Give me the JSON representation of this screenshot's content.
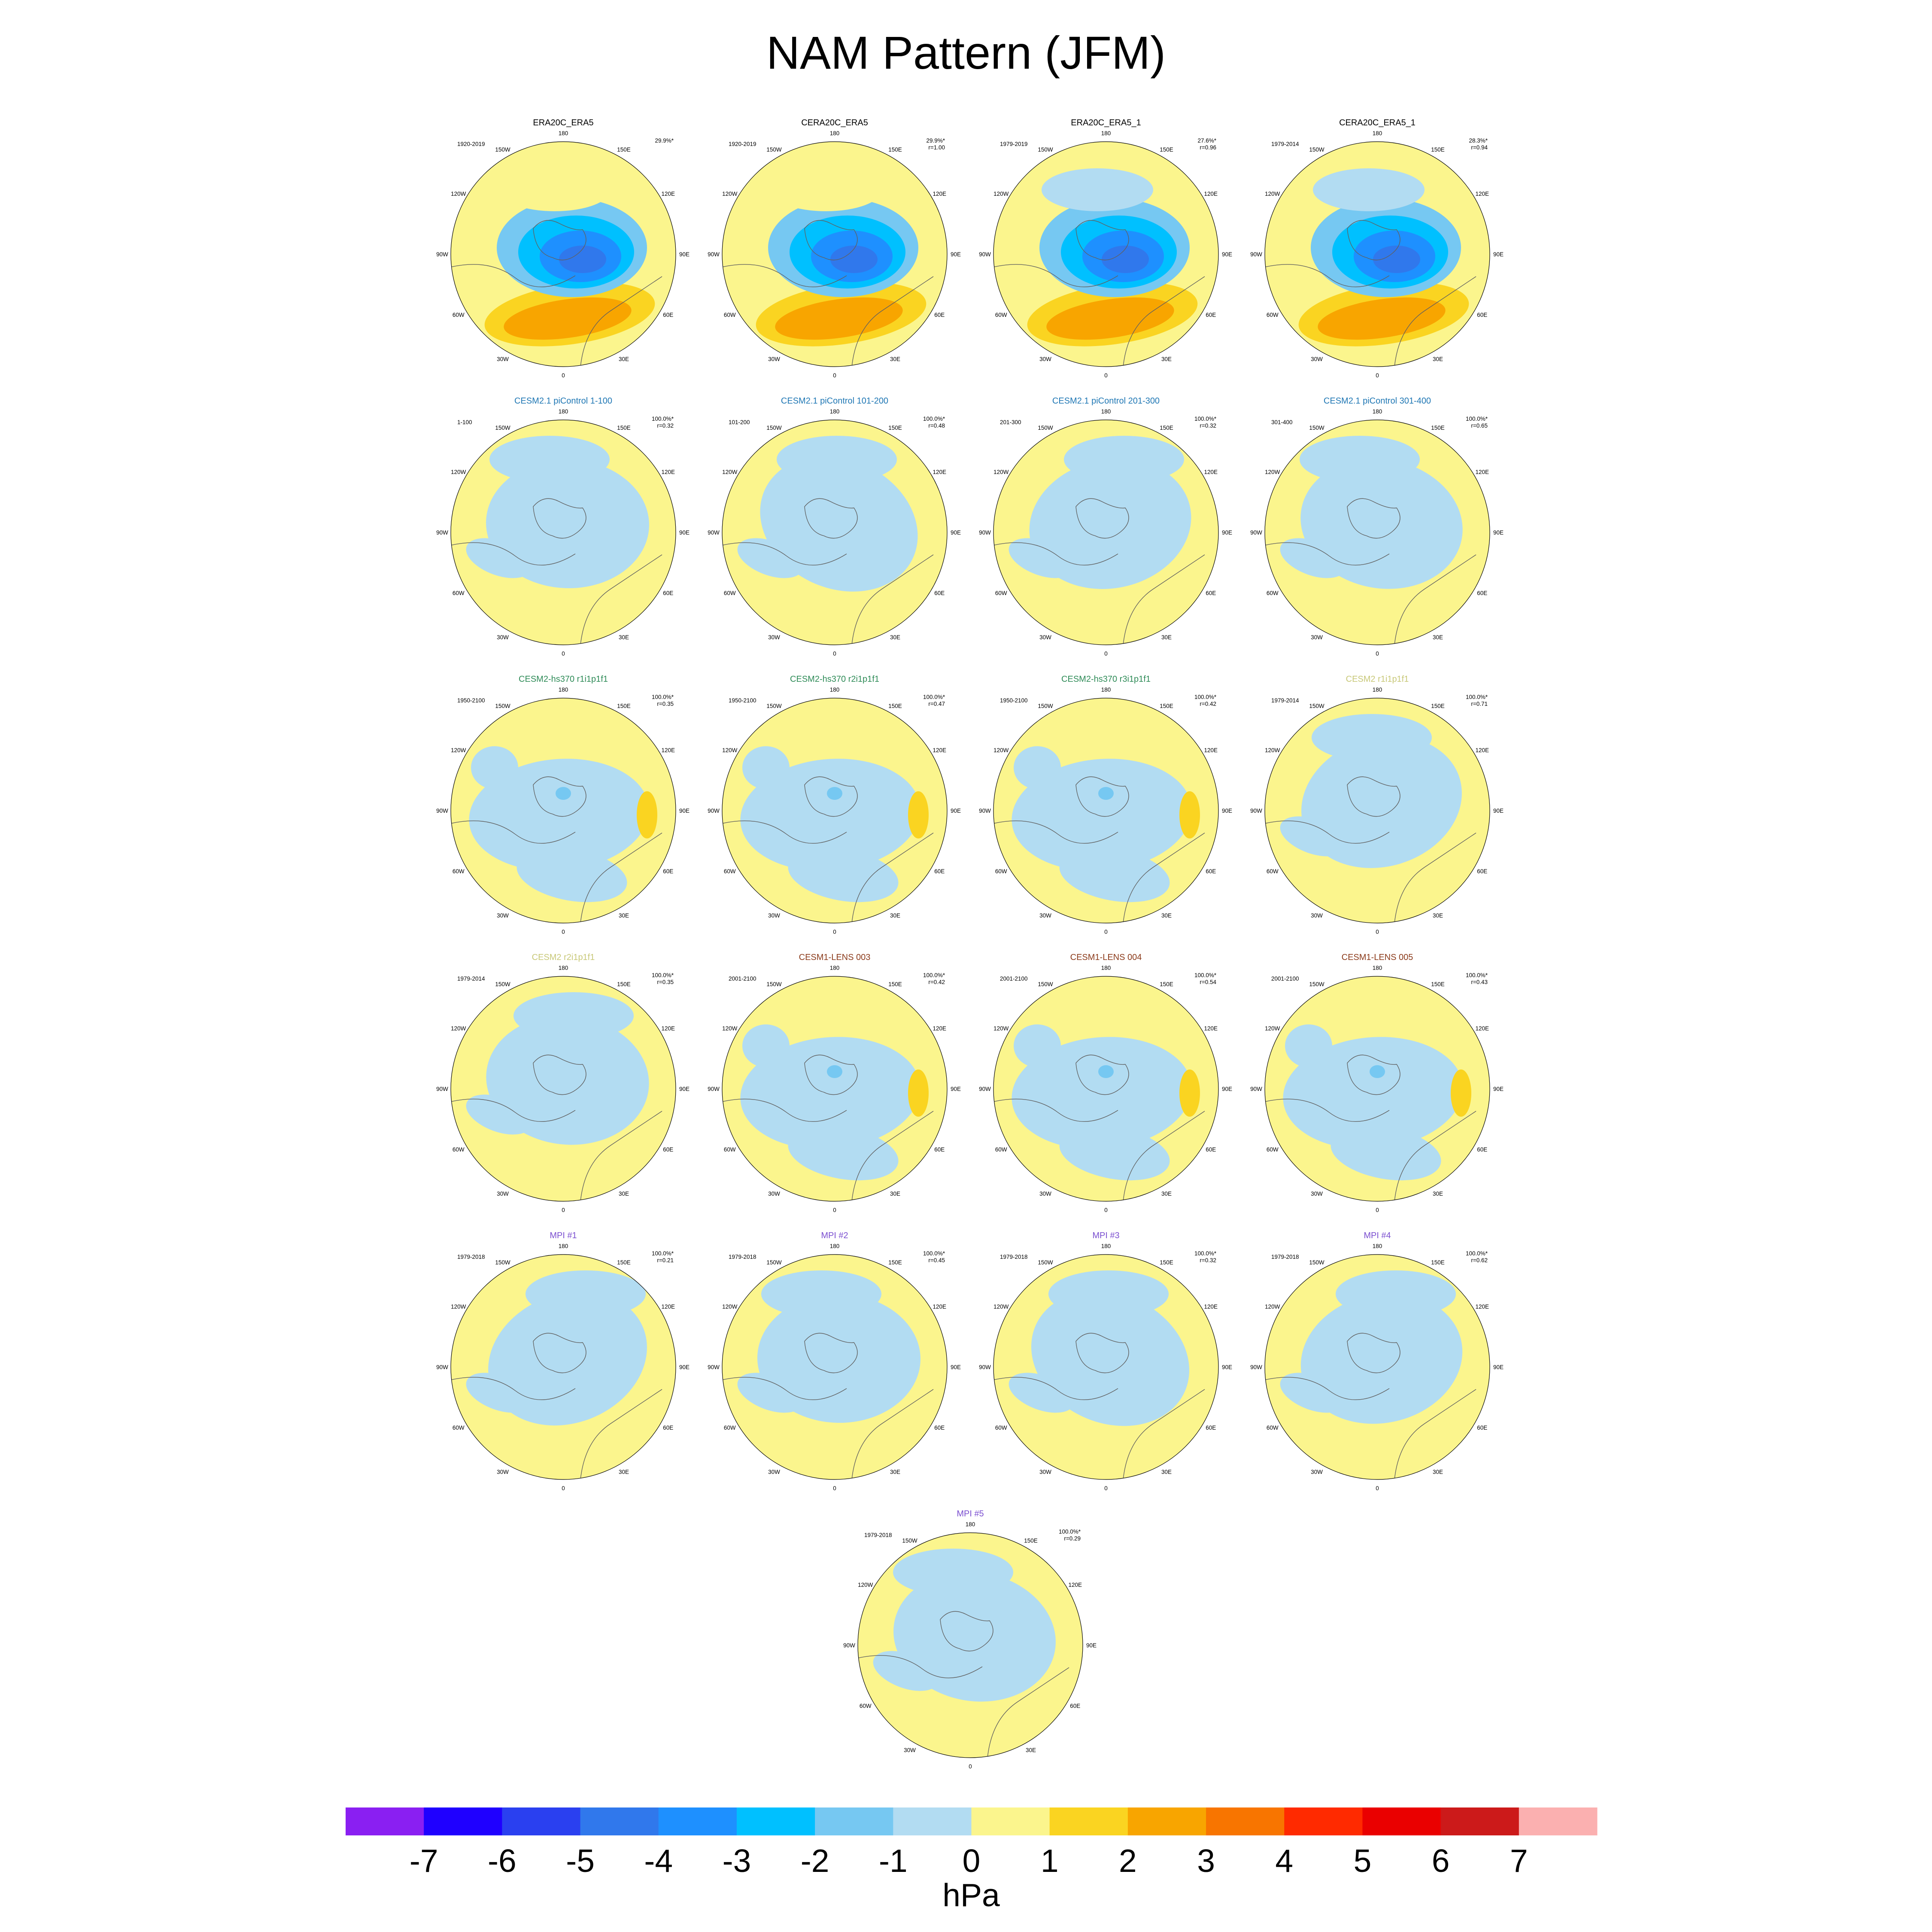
{
  "title": "NAM Pattern (JFM)",
  "colorbar": {
    "unit": "hPa",
    "ticks": [
      "-7",
      "-6",
      "-5",
      "-4",
      "-3",
      "-2",
      "-1",
      "0",
      "1",
      "2",
      "3",
      "4",
      "5",
      "6",
      "7"
    ],
    "colors": [
      "#8a1ff2",
      "#1f00ff",
      "#2a40f0",
      "#3078ec",
      "#1e90ff",
      "#00c0ff",
      "#76c8f2",
      "#b2dcf2",
      "#fbf58d",
      "#fad421",
      "#f8a500",
      "#f87500",
      "#ff2a00",
      "#ea0000",
      "#cc1a1a",
      "#fbb0b0"
    ]
  },
  "longitude_labels": [
    "180",
    "150E",
    "120E",
    "90E",
    "60E",
    "30E",
    "0",
    "30W",
    "60W",
    "90W",
    "120W",
    "150W"
  ],
  "chart_data": {
    "type": "heatmap",
    "description_variable": "NAM pattern sea level pressure regression",
    "panels": [
      {
        "title": "ERA20C_ERA5",
        "title_color": "#000000",
        "period": "1920-2019",
        "pct": "29.9%*",
        "r": "",
        "pattern": "obs"
      },
      {
        "title": "CERA20C_ERA5",
        "title_color": "#000000",
        "period": "1920-2019",
        "pct": "29.9%*",
        "r": "r=1.00",
        "pattern": "obs"
      },
      {
        "title": "ERA20C_ERA5_1",
        "title_color": "#000000",
        "period": "1979-2019",
        "pct": "27.6%*",
        "r": "r=0.96",
        "pattern": "obs"
      },
      {
        "title": "CERA20C_ERA5_1",
        "title_color": "#000000",
        "period": "1979-2014",
        "pct": "28.3%*",
        "r": "r=0.94",
        "pattern": "obs"
      },
      {
        "title": "CESM2.1 piControl 1-100",
        "title_color": "#1f77b4",
        "period": "1-100",
        "pct": "100.0%*",
        "r": "r=0.32",
        "pattern": "weak"
      },
      {
        "title": "CESM2.1 piControl 101-200",
        "title_color": "#1f77b4",
        "period": "101-200",
        "pct": "100.0%*",
        "r": "r=0.48",
        "pattern": "weak"
      },
      {
        "title": "CESM2.1 piControl 201-300",
        "title_color": "#1f77b4",
        "period": "201-300",
        "pct": "100.0%*",
        "r": "r=0.32",
        "pattern": "weak"
      },
      {
        "title": "CESM2.1 piControl 301-400",
        "title_color": "#1f77b4",
        "period": "301-400",
        "pct": "100.0%*",
        "r": "r=0.65",
        "pattern": "weak"
      },
      {
        "title": "CESM2-hs370 r1i1p1f1",
        "title_color": "#2e8b57",
        "period": "1950-2100",
        "pct": "100.0%*",
        "r": "r=0.35",
        "pattern": "hs"
      },
      {
        "title": "CESM2-hs370 r2i1p1f1",
        "title_color": "#2e8b57",
        "period": "1950-2100",
        "pct": "100.0%*",
        "r": "r=0.47",
        "pattern": "hs"
      },
      {
        "title": "CESM2-hs370 r3i1p1f1",
        "title_color": "#2e8b57",
        "period": "1950-2100",
        "pct": "100.0%*",
        "r": "r=0.42",
        "pattern": "hs"
      },
      {
        "title": "CESM2 r1i1p1f1",
        "title_color": "#c8c878",
        "period": "1979-2014",
        "pct": "100.0%*",
        "r": "r=0.71",
        "pattern": "weak"
      },
      {
        "title": "CESM2 r2i1p1f1",
        "title_color": "#c8c878",
        "period": "1979-2014",
        "pct": "100.0%*",
        "r": "r=0.35",
        "pattern": "weak"
      },
      {
        "title": "CESM1-LENS 003",
        "title_color": "#8b3a1a",
        "period": "2001-2100",
        "pct": "100.0%*",
        "r": "r=0.42",
        "pattern": "hs"
      },
      {
        "title": "CESM1-LENS 004",
        "title_color": "#8b3a1a",
        "period": "2001-2100",
        "pct": "100.0%*",
        "r": "r=0.54",
        "pattern": "hs"
      },
      {
        "title": "CESM1-LENS 005",
        "title_color": "#8b3a1a",
        "period": "2001-2100",
        "pct": "100.0%*",
        "r": "r=0.43",
        "pattern": "hs"
      },
      {
        "title": "MPI #1",
        "title_color": "#7b4fd0",
        "period": "1979-2018",
        "pct": "100.0%*",
        "r": "r=0.21",
        "pattern": "weak"
      },
      {
        "title": "MPI #2",
        "title_color": "#7b4fd0",
        "period": "1979-2018",
        "pct": "100.0%*",
        "r": "r=0.45",
        "pattern": "weak"
      },
      {
        "title": "MPI #3",
        "title_color": "#7b4fd0",
        "period": "1979-2018",
        "pct": "100.0%*",
        "r": "r=0.32",
        "pattern": "weak"
      },
      {
        "title": "MPI #4",
        "title_color": "#7b4fd0",
        "period": "1979-2018",
        "pct": "100.0%*",
        "r": "r=0.62",
        "pattern": "weak"
      },
      {
        "title": "MPI #5",
        "title_color": "#7b4fd0",
        "period": "1979-2018",
        "pct": "100.0%*",
        "r": "r=0.29",
        "pattern": "weak"
      }
    ]
  }
}
